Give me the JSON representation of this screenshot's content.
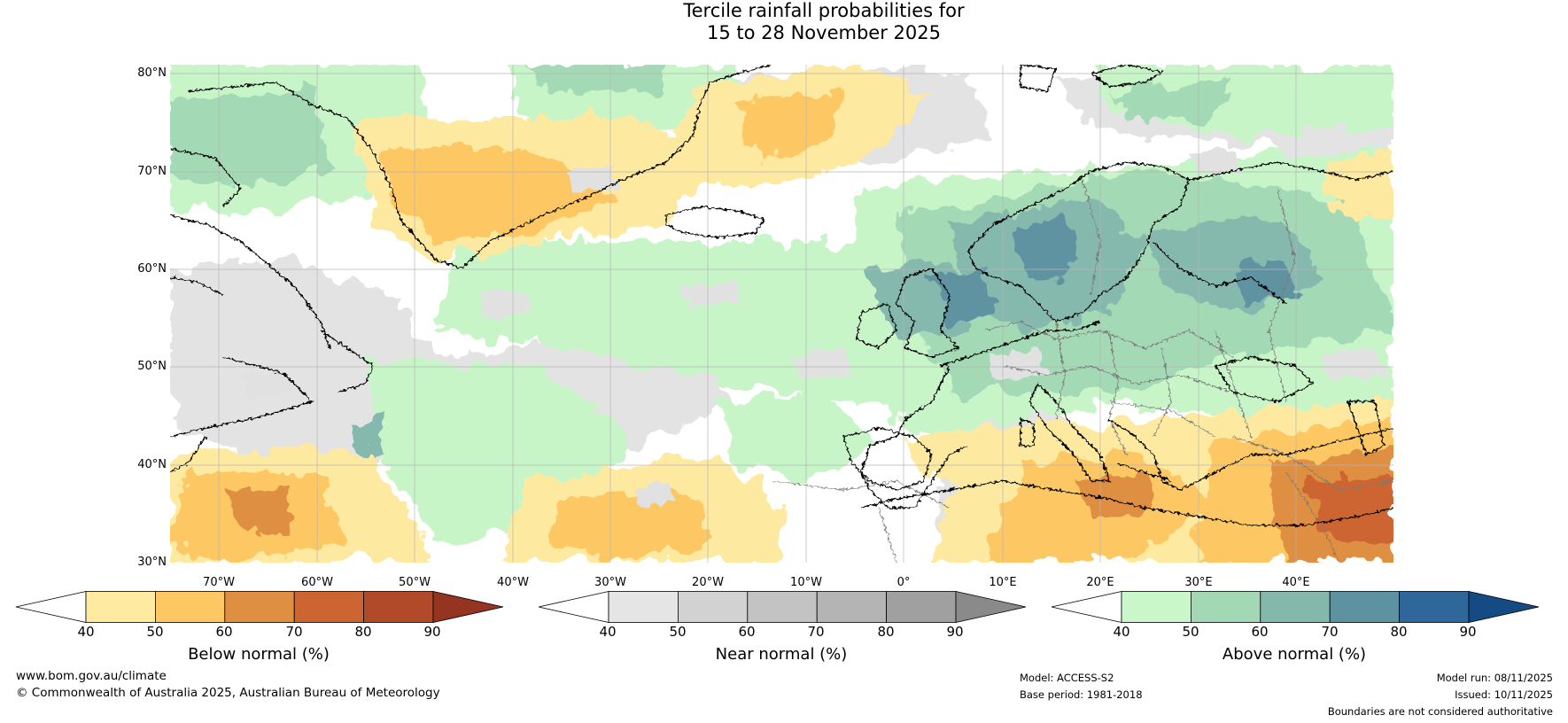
{
  "title": {
    "line1": "Tercile rainfall probabilities for",
    "line2": "15 to 28 November 2025"
  },
  "map": {
    "lat_labels": [
      "80°N",
      "70°N",
      "60°N",
      "50°N",
      "40°N",
      "30°N"
    ],
    "lon_labels": [
      "70°W",
      "60°W",
      "50°W",
      "40°W",
      "30°W",
      "20°W",
      "10°W",
      "0°",
      "10°E",
      "20°E",
      "30°E",
      "40°E"
    ],
    "lat_range": [
      30,
      81
    ],
    "lon_range": [
      -75.3,
      50
    ]
  },
  "legends": [
    {
      "title": "Below normal (%)",
      "ticks": [
        "40",
        "50",
        "60",
        "70",
        "80",
        "90"
      ],
      "colors": [
        "#ffffff",
        "#feeaa0",
        "#fdc864",
        "#df8f42",
        "#cd6533",
        "#b14a29",
        "#963422"
      ]
    },
    {
      "title": "Near normal (%)",
      "ticks": [
        "40",
        "50",
        "60",
        "70",
        "80",
        "90"
      ],
      "colors": [
        "#ffffff",
        "#e5e5e5",
        "#d2d2d2",
        "#c3c3c3",
        "#b4b4b4",
        "#a0a0a0",
        "#8a8a8a"
      ]
    },
    {
      "title": "Above normal (%)",
      "ticks": [
        "40",
        "50",
        "60",
        "70",
        "80",
        "90"
      ],
      "colors": [
        "#ffffff",
        "#c9f7c9",
        "#a2d8b4",
        "#84b8ab",
        "#5d92a0",
        "#30679b",
        "#154b84"
      ]
    }
  ],
  "footer": {
    "url": "www.bom.gov.au/climate",
    "copyright": "© Commonwealth of Australia 2025, Australian Bureau of Meteorology",
    "model": "Model: ACCESS-S2",
    "base_period": "Base period: 1981-2018",
    "model_run": "Model run: 08/11/2025",
    "issued": "Issued: 10/11/2025",
    "disclaimer": "Boundaries are not considered authoritative"
  }
}
